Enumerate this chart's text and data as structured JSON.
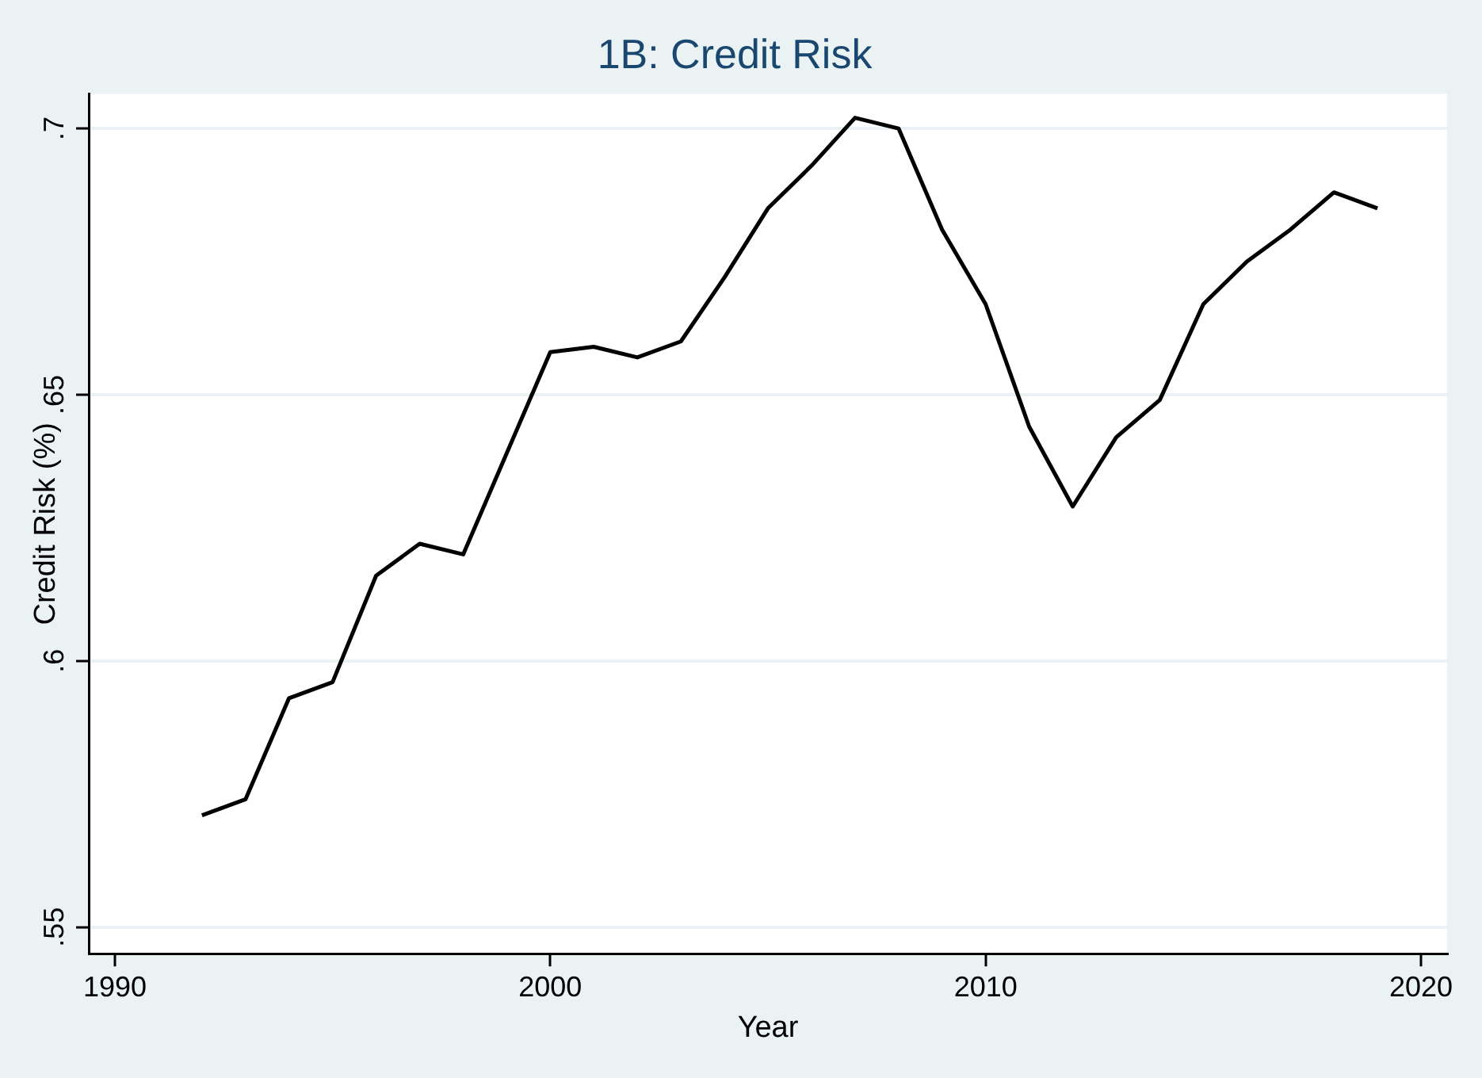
{
  "chart_data": {
    "type": "line",
    "title": "1B: Credit Risk",
    "xlabel": "Year",
    "ylabel": "Credit Risk (%)",
    "x": [
      1992,
      1993,
      1994,
      1995,
      1996,
      1997,
      1998,
      1999,
      2000,
      2001,
      2002,
      2003,
      2004,
      2005,
      2006,
      2007,
      2008,
      2009,
      2010,
      2011,
      2012,
      2013,
      2014,
      2015,
      2016,
      2017,
      2018,
      2019
    ],
    "series": [
      {
        "color": "#000000",
        "values": [
          0.571,
          0.574,
          0.593,
          0.596,
          0.616,
          0.622,
          0.62,
          0.639,
          0.658,
          0.659,
          0.657,
          0.66,
          0.672,
          0.685,
          0.693,
          0.702,
          0.7,
          0.681,
          0.667,
          0.644,
          0.629,
          0.642,
          0.649,
          0.667,
          0.675,
          0.681,
          0.688,
          0.685
        ]
      }
    ],
    "xlim": [
      1989.4,
      2020.6
    ],
    "xticks": [
      1990,
      2000,
      2010,
      2020
    ],
    "ylim": [
      0.545,
      0.7065
    ],
    "yticks": [
      {
        "value": 0.55,
        "label": ".55"
      },
      {
        "value": 0.6,
        "label": ".6"
      },
      {
        "value": 0.65,
        "label": ".65"
      },
      {
        "value": 0.7,
        "label": ".7"
      }
    ],
    "grid": "y",
    "legend": false,
    "marker": "none",
    "line_style": "solid"
  }
}
